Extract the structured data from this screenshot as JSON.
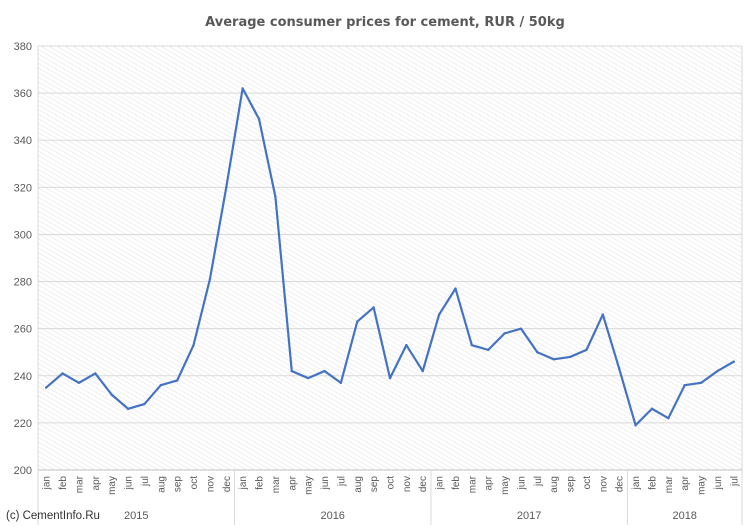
{
  "chart_data": {
    "type": "line",
    "title": "Average consumer prices for cement, RUR / 50kg",
    "xlabel": "",
    "ylabel": "",
    "ylim": [
      200,
      380
    ],
    "yticks": [
      200,
      220,
      240,
      260,
      280,
      300,
      320,
      340,
      360,
      380
    ],
    "grid": true,
    "legend": "none",
    "categories": [
      "jan",
      "feb",
      "mar",
      "apr",
      "may",
      "jun",
      "jul",
      "aug",
      "sep",
      "oct",
      "nov",
      "dec",
      "jan",
      "feb",
      "mar",
      "apr",
      "may",
      "jun",
      "jul",
      "aug",
      "sep",
      "oct",
      "nov",
      "dec",
      "jan",
      "feb",
      "mar",
      "apr",
      "may",
      "jun",
      "jul",
      "aug",
      "sep",
      "oct",
      "nov",
      "dec",
      "jan",
      "feb",
      "mar",
      "apr",
      "may",
      "jun",
      "jul"
    ],
    "years": [
      {
        "label": "2015",
        "start": 0,
        "count": 12
      },
      {
        "label": "2016",
        "start": 12,
        "count": 12
      },
      {
        "label": "2017",
        "start": 24,
        "count": 12
      },
      {
        "label": "2018",
        "start": 36,
        "count": 7
      }
    ],
    "series": [
      {
        "values": [
          235,
          241,
          237,
          241,
          232,
          226,
          228,
          236,
          238,
          253,
          281,
          320,
          362,
          349,
          316,
          242,
          239,
          242,
          237,
          263,
          269,
          239,
          253,
          242,
          266,
          277,
          253,
          251,
          258,
          260,
          250,
          247,
          248,
          251,
          266,
          243,
          219,
          226,
          222,
          236,
          237,
          242,
          246
        ]
      }
    ],
    "colors": {
      "line": "#4472C4",
      "grid": "#D9D9D9",
      "hatch": "#E6E6E6",
      "text": "#595959"
    }
  },
  "credit": "(c) CementInfo.Ru"
}
